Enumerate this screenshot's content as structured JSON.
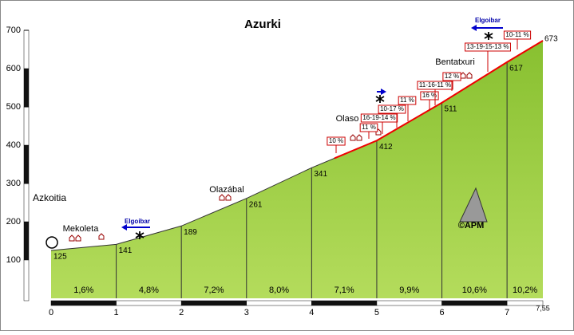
{
  "chart_data": {
    "type": "area",
    "title": "Azurki",
    "x": [
      0,
      1,
      2,
      3,
      4,
      5,
      6,
      7,
      7.55
    ],
    "series": [
      {
        "color": "#99cc33",
        "values": [
          125,
          141,
          189,
          261,
          341,
          412,
          511,
          617,
          673
        ]
      }
    ],
    "xlim": [
      0,
      7.55
    ],
    "xticks": [
      0,
      1,
      2,
      3,
      4,
      5,
      6,
      7,
      {
        "value": 7.55,
        "label": "7,55"
      }
    ],
    "ylim": [
      0,
      700
    ],
    "yticks": [
      100,
      200,
      300,
      400,
      500,
      600,
      700
    ],
    "grid": false,
    "gradient_labels": [
      "1,6%",
      "4,8%",
      "7,2%",
      "8,0%",
      "7,1%",
      "9,9%",
      "10,6%",
      "10,2%"
    ],
    "places": [
      "Azkoitia",
      "Mekoleta",
      "Olazábal",
      "Olaso",
      "Bentatxuri"
    ],
    "directions": [
      "Elgoibar",
      "Elgoibar"
    ],
    "ramp_labels": [
      "10 %",
      "11 %",
      "16-19-14 %",
      "10-17 %",
      "11 %",
      "16 %",
      "11-16-11 %",
      "12 %",
      "13-19-15-13 %",
      "10-11 %"
    ],
    "credit": "©APM"
  }
}
